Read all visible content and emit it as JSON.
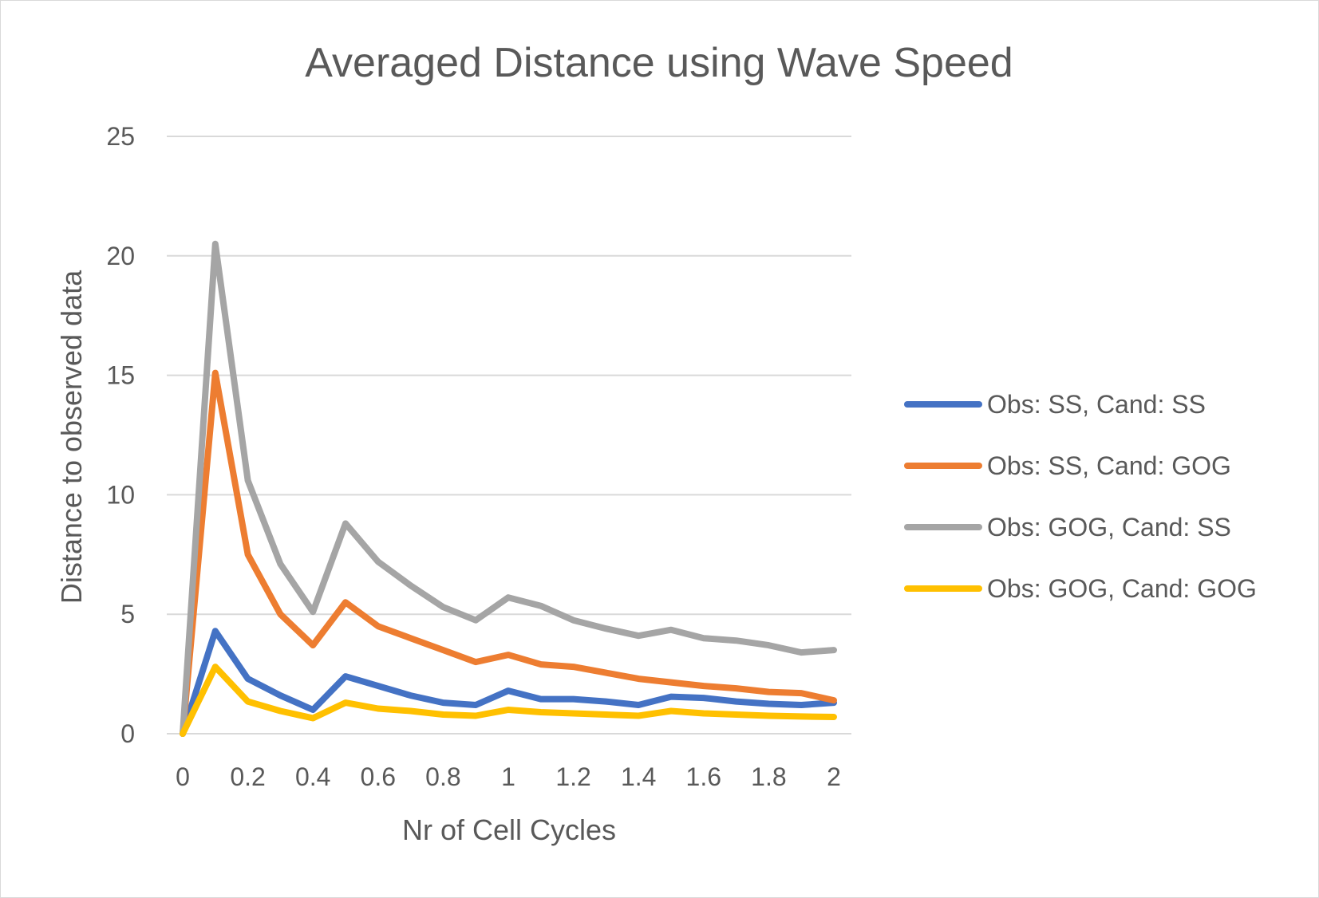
{
  "chart_data": {
    "type": "line",
    "title": "Averaged Distance using Wave Speed",
    "xlabel": "Nr of Cell Cycles",
    "ylabel": "Distance to observed data",
    "xlim": [
      0,
      2
    ],
    "ylim": [
      0,
      25
    ],
    "x_ticks": [
      "0",
      "0.2",
      "0.4",
      "0.6",
      "0.8",
      "1",
      "1.2",
      "1.4",
      "1.6",
      "1.8",
      "2"
    ],
    "y_ticks": [
      "0",
      "5",
      "10",
      "15",
      "20",
      "25"
    ],
    "grid": true,
    "legend_position": "right",
    "x": [
      0,
      0.1,
      0.2,
      0.3,
      0.4,
      0.5,
      0.6,
      0.7,
      0.8,
      0.9,
      1.0,
      1.1,
      1.2,
      1.3,
      1.4,
      1.5,
      1.6,
      1.7,
      1.8,
      1.9,
      2.0
    ],
    "series": [
      {
        "name": "Obs: SS, Cand: SS",
        "color": "#4472C4",
        "values": [
          0,
          4.3,
          2.3,
          1.6,
          1.0,
          2.4,
          2.0,
          1.6,
          1.3,
          1.2,
          1.8,
          1.45,
          1.45,
          1.35,
          1.2,
          1.55,
          1.5,
          1.35,
          1.25,
          1.2,
          1.3
        ]
      },
      {
        "name": "Obs: SS, Cand: GOG",
        "color": "#ED7D31",
        "values": [
          0,
          15.1,
          7.5,
          5.0,
          3.7,
          5.5,
          4.5,
          4.0,
          3.5,
          3.0,
          3.3,
          2.9,
          2.8,
          2.55,
          2.3,
          2.15,
          2.0,
          1.9,
          1.75,
          1.7,
          1.4
        ]
      },
      {
        "name": "Obs: GOG, Cand: SS",
        "color": "#A5A5A5",
        "values": [
          0,
          20.5,
          10.6,
          7.1,
          5.1,
          8.8,
          7.2,
          6.2,
          5.3,
          4.75,
          5.7,
          5.35,
          4.75,
          4.4,
          4.1,
          4.35,
          4.0,
          3.9,
          3.7,
          3.4,
          3.5
        ]
      },
      {
        "name": "Obs: GOG, Cand: GOG",
        "color": "#FFC000",
        "values": [
          0,
          2.8,
          1.35,
          0.95,
          0.65,
          1.3,
          1.05,
          0.95,
          0.8,
          0.75,
          1.0,
          0.9,
          0.85,
          0.8,
          0.75,
          0.95,
          0.85,
          0.8,
          0.75,
          0.72,
          0.7
        ]
      }
    ]
  }
}
